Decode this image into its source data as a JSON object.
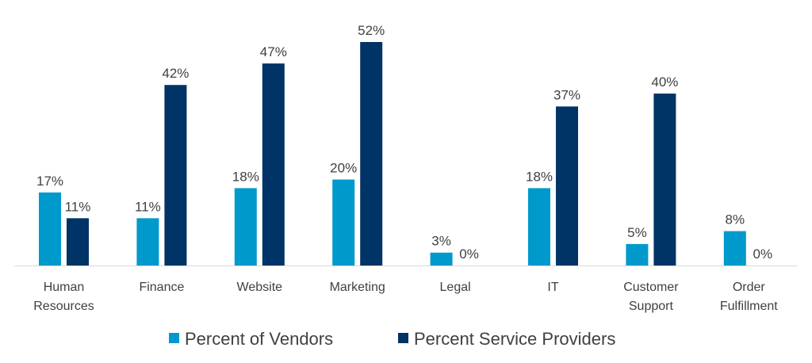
{
  "chart_data": {
    "type": "bar",
    "title": "",
    "xlabel": "",
    "ylabel": "",
    "ylim": [
      0,
      52
    ],
    "grid": false,
    "legend_position": "bottom",
    "categories": [
      [
        "Human",
        "Resources"
      ],
      [
        "Finance"
      ],
      [
        "Website"
      ],
      [
        "Marketing"
      ],
      [
        "Legal"
      ],
      [
        "IT"
      ],
      [
        "Customer",
        "Support"
      ],
      [
        "Order",
        "Fulfillment"
      ]
    ],
    "series": [
      {
        "name": "Percent of Vendors",
        "color": "#0099cc",
        "values": [
          17,
          11,
          18,
          20,
          3,
          18,
          5,
          8
        ],
        "labels": [
          "17%",
          "11%",
          "18%",
          "20%",
          "3%",
          "18%",
          "5%",
          "8%"
        ]
      },
      {
        "name": "Percent Service Providers",
        "color": "#003366",
        "values": [
          11,
          42,
          47,
          52,
          0,
          37,
          40,
          0
        ],
        "labels": [
          "11%",
          "42%",
          "47%",
          "52%",
          "0%",
          "37%",
          "40%",
          "0%"
        ]
      }
    ]
  }
}
